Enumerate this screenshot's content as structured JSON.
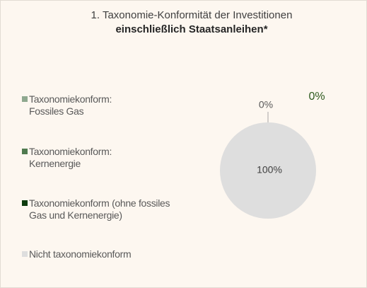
{
  "chart_data": {
    "type": "pie",
    "title": "1. Taxonomie-Konformität  der Investitionen",
    "subtitle": "einschließlich  Staatsanleihen*",
    "categories": [
      "Taxonomiekonform:\nFossiles Gas",
      "Taxonomiekonform:\nKernenergie",
      "Taxonomiekonform (ohne fossiles\nGas und Kernenergie)",
      "Nicht taxonomiekonform"
    ],
    "values": [
      0,
      0,
      0,
      100
    ],
    "value_labels": [
      "0%",
      null,
      "0%",
      "100%"
    ],
    "colors": [
      "#8fa88f",
      "#4f7a4f",
      "#0d3b0d",
      "#dedede"
    ],
    "legend": "left"
  }
}
